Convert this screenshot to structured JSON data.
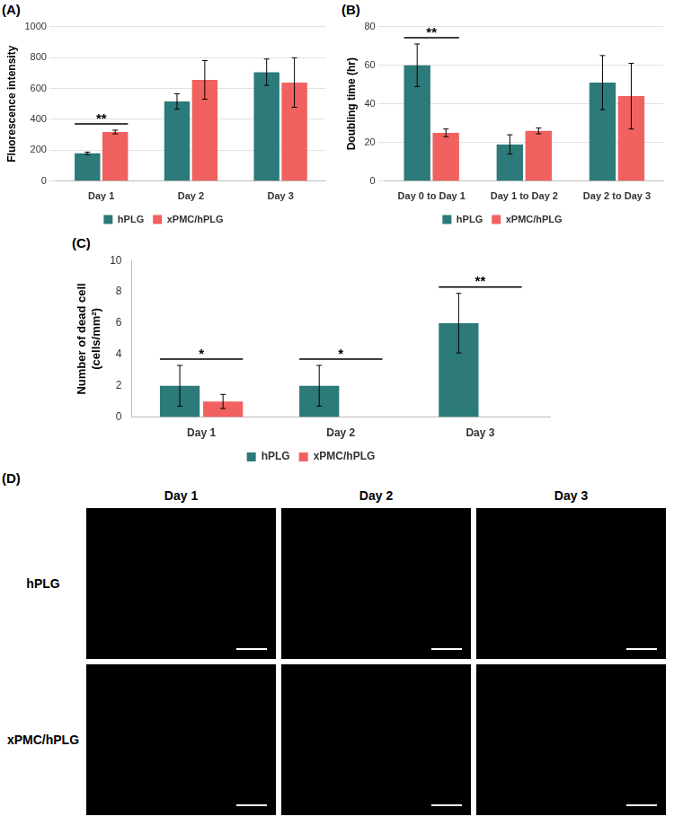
{
  "chart_data": [
    {
      "letter": "(A)",
      "type": "bar",
      "y_label": "Fluorescence intensity",
      "categories": [
        "Day 1",
        "Day 2",
        "Day 3"
      ],
      "series": [
        {
          "name": "hPLG",
          "color": "#2c7a79",
          "values": [
            180,
            515,
            705
          ],
          "errors": [
            8,
            50,
            85
          ]
        },
        {
          "name": "xPMC/hPLG",
          "color": "#f0615f",
          "values": [
            318,
            655,
            638
          ],
          "errors": [
            12,
            125,
            160
          ]
        }
      ],
      "ylim": [
        0,
        1000
      ],
      "yticks": [
        0,
        200,
        400,
        600,
        800,
        1000
      ],
      "grid": true,
      "legend": "bottom",
      "significance": [
        {
          "category": "Day 1",
          "label": "**"
        }
      ]
    },
    {
      "letter": "(B)",
      "type": "bar",
      "y_label": "Doubling time (hr)",
      "categories": [
        "Day 0 to Day 1",
        "Day 1 to Day 2",
        "Day 2 to Day 3"
      ],
      "series": [
        {
          "name": "hPLG",
          "color": "#2c7a79",
          "values": [
            60,
            19,
            51
          ],
          "errors": [
            11,
            5,
            14
          ]
        },
        {
          "name": "xPMC/hPLG",
          "color": "#f0615f",
          "values": [
            25,
            26,
            44
          ],
          "errors": [
            2,
            1.5,
            17
          ]
        }
      ],
      "ylim": [
        0,
        80
      ],
      "yticks": [
        0,
        20,
        40,
        60,
        80
      ],
      "grid": true,
      "legend": "bottom",
      "significance": [
        {
          "category": "Day 0 to Day 1",
          "label": "**"
        }
      ]
    },
    {
      "letter": "(C)",
      "type": "bar",
      "y_label": "Number of dead cell (cells/mm²)",
      "categories": [
        "Day 1",
        "Day 2",
        "Day 3"
      ],
      "series": [
        {
          "name": "hPLG",
          "color": "#2c7a79",
          "values": [
            2,
            2,
            6
          ],
          "errors": [
            1.3,
            1.3,
            1.9
          ]
        },
        {
          "name": "xPMC/hPLG",
          "color": "#f0615f",
          "values": [
            1,
            0,
            0
          ],
          "errors": [
            0.45,
            0,
            0
          ]
        }
      ],
      "ylim": [
        0,
        10
      ],
      "yticks": [
        0,
        2,
        4,
        6,
        8,
        10
      ],
      "grid": false,
      "legend": "bottom",
      "significance": [
        {
          "category": "Day 1",
          "label": "*"
        },
        {
          "category": "Day 2",
          "label": "*"
        },
        {
          "category": "Day 3",
          "label": "**"
        }
      ]
    }
  ],
  "image_grid": {
    "letter": "(D)",
    "columns": [
      "Day 1",
      "Day 2",
      "Day 3"
    ],
    "rows": [
      "hPLG",
      "xPMC/hPLG"
    ]
  }
}
